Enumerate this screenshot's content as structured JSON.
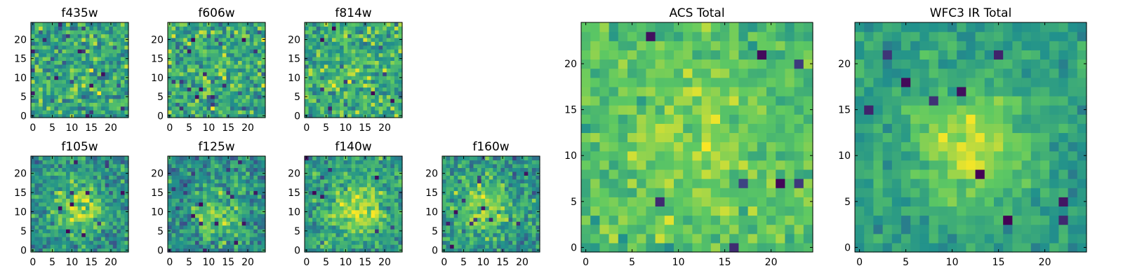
{
  "colormap": "viridis",
  "colormap_stops": [
    "#440154",
    "#3b528b",
    "#21918c",
    "#5ec962",
    "#fde725"
  ],
  "chart_data": [
    {
      "type": "heatmap",
      "title": "f435w",
      "grid_size": 25,
      "center": [
        13,
        12
      ],
      "center_strength": 0.05,
      "sigma": 4.0,
      "noise": 0.4,
      "base": 0.58,
      "dark_spots": 14,
      "seed": 11,
      "xticks": [
        0,
        5,
        10,
        15,
        20
      ],
      "yticks": [
        0,
        5,
        10,
        15,
        20
      ],
      "xlim": [
        0,
        24
      ],
      "ylim": [
        0,
        24
      ],
      "grid": false
    },
    {
      "type": "heatmap",
      "title": "f606w",
      "grid_size": 25,
      "center": [
        12,
        13
      ],
      "center_strength": 0.05,
      "sigma": 4.0,
      "noise": 0.4,
      "base": 0.6,
      "dark_spots": 14,
      "seed": 23,
      "xticks": [
        0,
        5,
        10,
        15,
        20
      ],
      "yticks": [
        0,
        5,
        10,
        15,
        20
      ],
      "xlim": [
        0,
        24
      ],
      "ylim": [
        0,
        24
      ],
      "grid": false
    },
    {
      "type": "heatmap",
      "title": "f814w",
      "grid_size": 25,
      "center": [
        12,
        12
      ],
      "center_strength": 0.06,
      "sigma": 4.0,
      "noise": 0.38,
      "base": 0.62,
      "dark_spots": 8,
      "seed": 37,
      "xticks": [
        0,
        5,
        10,
        15,
        20
      ],
      "yticks": [
        0,
        5,
        10,
        15,
        20
      ],
      "xlim": [
        0,
        24
      ],
      "ylim": [
        0,
        24
      ],
      "grid": false
    },
    {
      "type": "heatmap",
      "title": "f105w",
      "grid_size": 25,
      "center": [
        12,
        11
      ],
      "center_strength": 0.35,
      "sigma": 4.5,
      "noise": 0.32,
      "base": 0.5,
      "dark_spots": 10,
      "seed": 41,
      "xticks": [
        0,
        5,
        10,
        15,
        20
      ],
      "yticks": [
        0,
        5,
        10,
        15,
        20
      ],
      "xlim": [
        0,
        24
      ],
      "ylim": [
        0,
        24
      ],
      "grid": false
    },
    {
      "type": "heatmap",
      "title": "f125w",
      "grid_size": 25,
      "center": [
        12,
        9
      ],
      "center_strength": 0.3,
      "sigma": 4.5,
      "noise": 0.34,
      "base": 0.48,
      "dark_spots": 14,
      "seed": 53,
      "xticks": [
        0,
        5,
        10,
        15,
        20
      ],
      "yticks": [
        0,
        5,
        10,
        15,
        20
      ],
      "xlim": [
        0,
        24
      ],
      "ylim": [
        0,
        24
      ],
      "grid": false
    },
    {
      "type": "heatmap",
      "title": "f140w",
      "grid_size": 25,
      "center": [
        13,
        11
      ],
      "center_strength": 0.35,
      "sigma": 5.0,
      "noise": 0.3,
      "base": 0.55,
      "dark_spots": 8,
      "seed": 67,
      "xticks": [
        0,
        5,
        10,
        15,
        20
      ],
      "yticks": [
        0,
        5,
        10,
        15,
        20
      ],
      "xlim": [
        0,
        24
      ],
      "ylim": [
        0,
        24
      ],
      "grid": false
    },
    {
      "type": "heatmap",
      "title": "f160w",
      "grid_size": 25,
      "center": [
        10,
        11
      ],
      "center_strength": 0.3,
      "sigma": 5.0,
      "noise": 0.33,
      "base": 0.52,
      "dark_spots": 12,
      "seed": 79,
      "xticks": [
        0,
        5,
        10,
        15,
        20
      ],
      "yticks": [
        0,
        5,
        10,
        15,
        20
      ],
      "xlim": [
        0,
        24
      ],
      "ylim": [
        0,
        24
      ],
      "grid": false
    },
    {
      "type": "heatmap",
      "title": "ACS Total",
      "grid_size": 25,
      "center": [
        12,
        11
      ],
      "center_strength": 0.12,
      "sigma": 5.0,
      "noise": 0.22,
      "base": 0.7,
      "dark_spots": 8,
      "seed": 97,
      "xticks": [
        0,
        5,
        10,
        15,
        20
      ],
      "yticks": [
        0,
        5,
        10,
        15,
        20
      ],
      "xlim": [
        0,
        24
      ],
      "ylim": [
        0,
        24
      ],
      "grid": false
    },
    {
      "type": "heatmap",
      "title": "WFC3 IR Total",
      "grid_size": 25,
      "center": [
        12,
        11
      ],
      "center_strength": 0.35,
      "sigma": 4.5,
      "noise": 0.18,
      "base": 0.55,
      "dark_spots": 10,
      "seed": 131,
      "xticks": [
        0,
        5,
        10,
        15,
        20
      ],
      "yticks": [
        0,
        5,
        10,
        15,
        20
      ],
      "xlim": [
        0,
        24
      ],
      "ylim": [
        0,
        24
      ],
      "grid": false
    }
  ]
}
